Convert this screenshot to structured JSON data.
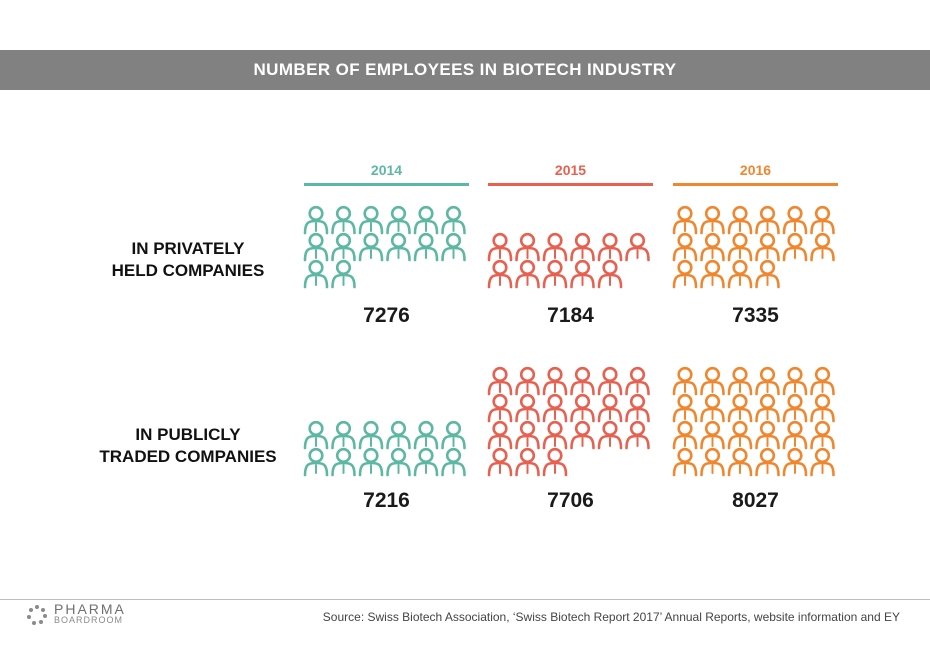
{
  "title": "NUMBER OF EMPLOYEES IN BIOTECH INDUSTRY",
  "row_labels": {
    "private": [
      "IN PRIVATELY",
      "HELD COMPANIES"
    ],
    "public": [
      "IN PUBLICLY",
      "TRADED COMPANIES"
    ]
  },
  "source": "Source: Swiss Biotech Association, ‘Swiss Biotech Report 2017’ Annual Reports, website information and EY",
  "logo": {
    "line1": "PHARMA",
    "line2": "BOARDROOM"
  },
  "colors": {
    "2014": "#5db8a3",
    "2015": "#e8604f",
    "2016": "#f0872e",
    "title_bar": "#818181"
  },
  "chart_data": {
    "type": "pictograph",
    "title": "NUMBER OF EMPLOYEES IN BIOTECH INDUSTRY",
    "categories": [
      "2014",
      "2015",
      "2016"
    ],
    "series": [
      {
        "name": "IN PRIVATELY HELD COMPANIES",
        "values": [
          7276,
          7184,
          7335
        ],
        "icons": [
          14,
          11,
          16
        ]
      },
      {
        "name": "IN PUBLICLY TRADED COMPANIES",
        "values": [
          7216,
          7706,
          8027
        ],
        "icons": [
          12,
          21,
          24
        ]
      }
    ],
    "icons_per_row": 6
  }
}
